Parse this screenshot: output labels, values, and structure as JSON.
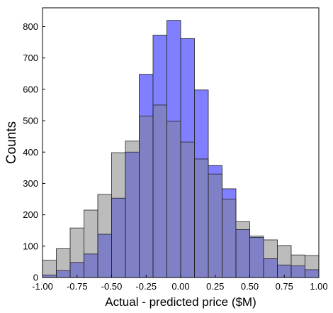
{
  "chart_data": {
    "type": "histogram",
    "xlabel": "Actual - predicted price ($M)",
    "ylabel": "Counts",
    "xlim": [
      -1.0,
      1.0
    ],
    "ylim": [
      0,
      860
    ],
    "grid": false,
    "x_ticks": [
      -1.0,
      -0.75,
      -0.5,
      -0.25,
      0.0,
      0.25,
      0.5,
      0.75,
      1.0
    ],
    "x_tick_labels": [
      "-1.00",
      "-0.75",
      "-0.50",
      "-0.25",
      "0.00",
      "0.25",
      "0.50",
      "0.75",
      "1.00"
    ],
    "y_ticks": [
      0,
      100,
      200,
      300,
      400,
      500,
      600,
      700,
      800
    ],
    "y_tick_labels": [
      "0",
      "100",
      "200",
      "300",
      "400",
      "500",
      "600",
      "700",
      "800"
    ],
    "bin_edges": [
      -1.0,
      -0.9,
      -0.8,
      -0.7,
      -0.6,
      -0.5,
      -0.4,
      -0.3,
      -0.2,
      -0.1,
      0.0,
      0.1,
      0.2,
      0.3,
      0.4,
      0.5,
      0.6,
      0.7,
      0.8,
      0.9,
      1.0
    ],
    "series": [
      {
        "color": "#bcbcbc",
        "values": [
          55,
          92,
          158,
          215,
          265,
          398,
          435,
          515,
          550,
          498,
          432,
          378,
          330,
          250,
          178,
          132,
          120,
          102,
          72,
          70
        ]
      },
      {
        "color": "#7f7fff",
        "values": [
          8,
          22,
          48,
          75,
          138,
          253,
          400,
          648,
          773,
          820,
          762,
          598,
          357,
          283,
          153,
          128,
          60,
          40,
          37,
          25
        ]
      }
    ],
    "overlap_color": "#8080c6",
    "edge_color": "#222222"
  }
}
